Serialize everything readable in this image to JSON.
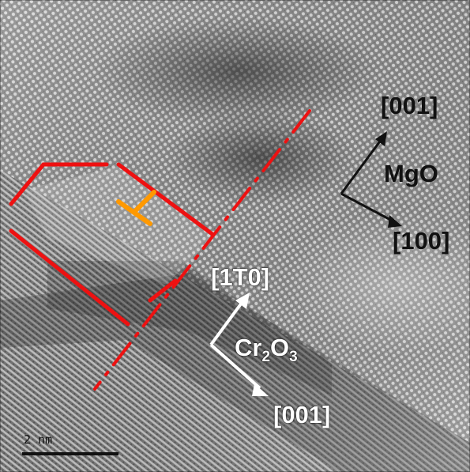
{
  "figure": {
    "labels": {
      "mgo_direction_top": "[001]",
      "mgo_phase": "MgO",
      "mgo_direction_bottom": "[100]",
      "cr2o3_direction_top": "[1T0]",
      "cr2o3_phase_base": "Cr",
      "cr2o3_sub_1": "2",
      "cr2o3_phase_mid": "O",
      "cr2o3_sub_2": "3",
      "cr2o3_direction_bottom": "[001]",
      "scale_bar": "2 nm"
    },
    "colors": {
      "boundary_lines": "#ee1111",
      "dislocation_symbol": "#ff9900",
      "mgo_annotation": "#111111",
      "cr2o3_annotation": "#ffffff",
      "scale_bar": "#111111"
    },
    "icons": [
      "arrow-up-right-icon",
      "arrow-down-right-icon",
      "dislocation-symbol-icon"
    ]
  }
}
